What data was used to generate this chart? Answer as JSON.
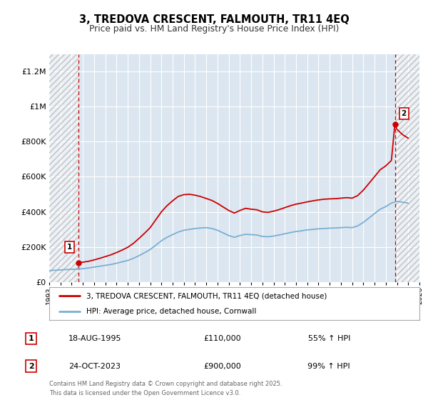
{
  "title": "3, TREDOVA CRESCENT, FALMOUTH, TR11 4EQ",
  "subtitle": "Price paid vs. HM Land Registry's House Price Index (HPI)",
  "background_color": "#ffffff",
  "plot_bg_color": "#dce6f0",
  "grid_color": "#ffffff",
  "red_line_color": "#cc0000",
  "blue_line_color": "#7aafd4",
  "ylim": [
    0,
    1300000
  ],
  "yticks": [
    0,
    200000,
    400000,
    600000,
    800000,
    1000000,
    1200000
  ],
  "ytick_labels": [
    "£0",
    "£200K",
    "£400K",
    "£600K",
    "£800K",
    "£1M",
    "£1.2M"
  ],
  "xmin": 1993.0,
  "xmax": 2026.0,
  "sale1_x": 1995.63,
  "sale1_y": 110000,
  "sale2_x": 2023.81,
  "sale2_y": 900000,
  "legend_red": "3, TREDOVA CRESCENT, FALMOUTH, TR11 4EQ (detached house)",
  "legend_blue": "HPI: Average price, detached house, Cornwall",
  "table_row1": [
    "1",
    "18-AUG-1995",
    "£110,000",
    "55% ↑ HPI"
  ],
  "table_row2": [
    "2",
    "24-OCT-2023",
    "£900,000",
    "99% ↑ HPI"
  ],
  "footer": "Contains HM Land Registry data © Crown copyright and database right 2025.\nThis data is licensed under the Open Government Licence v3.0.",
  "hpi_data_years": [
    1993.0,
    1993.5,
    1994.0,
    1994.5,
    1995.0,
    1995.5,
    1996.0,
    1996.5,
    1997.0,
    1997.5,
    1998.0,
    1998.5,
    1999.0,
    1999.5,
    2000.0,
    2000.5,
    2001.0,
    2001.5,
    2002.0,
    2002.5,
    2003.0,
    2003.5,
    2004.0,
    2004.5,
    2005.0,
    2005.5,
    2006.0,
    2006.5,
    2007.0,
    2007.5,
    2008.0,
    2008.5,
    2009.0,
    2009.5,
    2010.0,
    2010.5,
    2011.0,
    2011.5,
    2012.0,
    2012.5,
    2013.0,
    2013.5,
    2014.0,
    2014.5,
    2015.0,
    2015.5,
    2016.0,
    2016.5,
    2017.0,
    2017.5,
    2018.0,
    2018.5,
    2019.0,
    2019.5,
    2020.0,
    2020.5,
    2021.0,
    2021.5,
    2022.0,
    2022.5,
    2023.0,
    2023.5,
    2024.0,
    2024.5,
    2025.0
  ],
  "hpi_data_vals": [
    65000,
    67000,
    69000,
    71000,
    72000,
    73500,
    76000,
    80000,
    85000,
    90000,
    95000,
    100000,
    107000,
    115000,
    123000,
    135000,
    150000,
    167000,
    185000,
    210000,
    235000,
    255000,
    270000,
    285000,
    295000,
    300000,
    305000,
    308000,
    310000,
    305000,
    295000,
    280000,
    265000,
    255000,
    265000,
    272000,
    270000,
    268000,
    260000,
    258000,
    262000,
    268000,
    275000,
    282000,
    288000,
    292000,
    297000,
    300000,
    303000,
    305000,
    307000,
    308000,
    310000,
    312000,
    310000,
    320000,
    340000,
    365000,
    390000,
    415000,
    430000,
    450000,
    460000,
    455000,
    450000
  ],
  "prop_data_years": [
    1995.63,
    1996.0,
    1996.5,
    1997.0,
    1997.5,
    1998.0,
    1998.5,
    1999.0,
    1999.5,
    2000.0,
    2000.5,
    2001.0,
    2001.5,
    2002.0,
    2002.5,
    2003.0,
    2003.5,
    2004.0,
    2004.5,
    2005.0,
    2005.5,
    2006.0,
    2006.5,
    2007.0,
    2007.5,
    2008.0,
    2008.5,
    2009.0,
    2009.5,
    2010.0,
    2010.5,
    2011.0,
    2011.5,
    2012.0,
    2012.5,
    2013.0,
    2013.5,
    2014.0,
    2014.5,
    2015.0,
    2015.5,
    2016.0,
    2016.5,
    2017.0,
    2017.5,
    2018.0,
    2018.5,
    2019.0,
    2019.5,
    2020.0,
    2020.5,
    2021.0,
    2021.5,
    2022.0,
    2022.5,
    2023.0,
    2023.5,
    2023.81,
    2024.0,
    2024.5,
    2025.0
  ],
  "prop_data_vals": [
    110000,
    113000,
    118000,
    126000,
    135000,
    145000,
    155000,
    168000,
    182000,
    198000,
    220000,
    248000,
    278000,
    310000,
    355000,
    400000,
    435000,
    463000,
    488000,
    498000,
    500000,
    495000,
    487000,
    476000,
    465000,
    448000,
    428000,
    408000,
    393000,
    408000,
    420000,
    415000,
    412000,
    400000,
    397000,
    404000,
    413000,
    424000,
    435000,
    444000,
    450000,
    457000,
    463000,
    468000,
    472000,
    474000,
    475000,
    478000,
    481000,
    478000,
    493000,
    524000,
    562000,
    601000,
    640000,
    662000,
    693000,
    900000,
    870000,
    840000,
    820000
  ]
}
